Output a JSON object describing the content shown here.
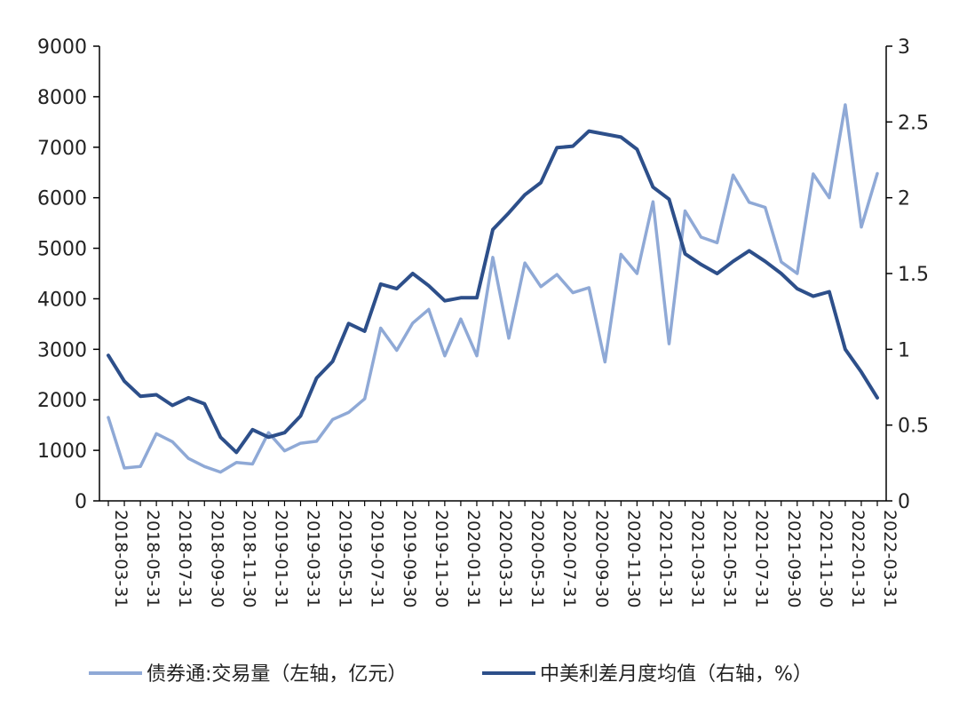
{
  "colors": {
    "light_series": "#8FA9D6",
    "dark_series": "#2D4F8A",
    "axis": "#000000"
  },
  "chart_data": {
    "type": "line",
    "x": [
      "2018-03-31",
      "2018-04-30",
      "2018-05-31",
      "2018-06-30",
      "2018-07-31",
      "2018-08-31",
      "2018-09-30",
      "2018-10-31",
      "2018-11-30",
      "2018-12-31",
      "2019-01-31",
      "2019-02-28",
      "2019-03-31",
      "2019-04-30",
      "2019-05-31",
      "2019-06-30",
      "2019-07-31",
      "2019-08-31",
      "2019-09-30",
      "2019-10-31",
      "2019-11-30",
      "2019-12-31",
      "2020-01-31",
      "2020-02-29",
      "2020-03-31",
      "2020-04-30",
      "2020-05-31",
      "2020-06-30",
      "2020-07-31",
      "2020-08-31",
      "2020-09-30",
      "2020-10-31",
      "2020-11-30",
      "2020-12-31",
      "2021-01-31",
      "2021-02-28",
      "2021-03-31",
      "2021-04-30",
      "2021-05-31",
      "2021-06-30",
      "2021-07-31",
      "2021-08-31",
      "2021-09-30",
      "2021-10-31",
      "2021-11-30",
      "2021-12-31",
      "2022-01-31",
      "2022-02-28",
      "2022-03-31"
    ],
    "x_tick_labels": [
      "2018-03-31",
      "2018-05-31",
      "2018-07-31",
      "2018-09-30",
      "2018-11-30",
      "2019-01-31",
      "2019-03-31",
      "2019-05-31",
      "2019-07-31",
      "2019-09-30",
      "2019-11-30",
      "2020-01-31",
      "2020-03-31",
      "2020-05-31",
      "2020-07-31",
      "2020-09-30",
      "2020-11-30",
      "2021-01-31",
      "2021-03-31",
      "2021-05-31",
      "2021-07-31",
      "2021-09-30",
      "2021-11-30",
      "2022-01-31",
      "2022-03-31"
    ],
    "y_left": {
      "min": 0,
      "max": 9000,
      "ticks": [
        "0",
        "1000",
        "2000",
        "3000",
        "4000",
        "5000",
        "6000",
        "7000",
        "8000",
        "9000"
      ]
    },
    "y_right": {
      "min": 0,
      "max": 3,
      "ticks": [
        "0",
        "0.5",
        "1",
        "1.5",
        "2",
        "2.5",
        "3"
      ]
    },
    "grid": false,
    "legend_position": "bottom",
    "series": [
      {
        "name": "债券通:交易量（左轴，亿元）",
        "axis": "left",
        "values": [
          1650,
          650,
          680,
          1330,
          1170,
          840,
          680,
          570,
          760,
          730,
          1350,
          990,
          1140,
          1180,
          1610,
          1750,
          2020,
          3420,
          2980,
          3520,
          3790,
          2870,
          3600,
          2870,
          4820,
          3220,
          4710,
          4240,
          4480,
          4120,
          4220,
          2750,
          4880,
          4500,
          5920,
          3110,
          5740,
          5220,
          5110,
          6450,
          5910,
          5810,
          4730,
          4500,
          6470,
          6000,
          7840,
          5420,
          6480
        ]
      },
      {
        "name": "中美利差月度均值（右轴，%）",
        "axis": "right",
        "values": [
          0.96,
          0.79,
          0.69,
          0.7,
          0.63,
          0.68,
          0.64,
          0.42,
          0.32,
          0.47,
          0.42,
          0.45,
          0.56,
          0.81,
          0.92,
          1.17,
          1.12,
          1.43,
          1.4,
          1.5,
          1.42,
          1.32,
          1.34,
          1.34,
          1.79,
          1.9,
          2.02,
          2.1,
          2.33,
          2.34,
          2.44,
          2.42,
          2.4,
          2.32,
          2.07,
          1.99,
          1.63,
          1.56,
          1.5,
          1.58,
          1.65,
          1.58,
          1.5,
          1.4,
          1.35,
          1.38,
          1.0,
          0.85,
          0.68
        ]
      }
    ]
  }
}
